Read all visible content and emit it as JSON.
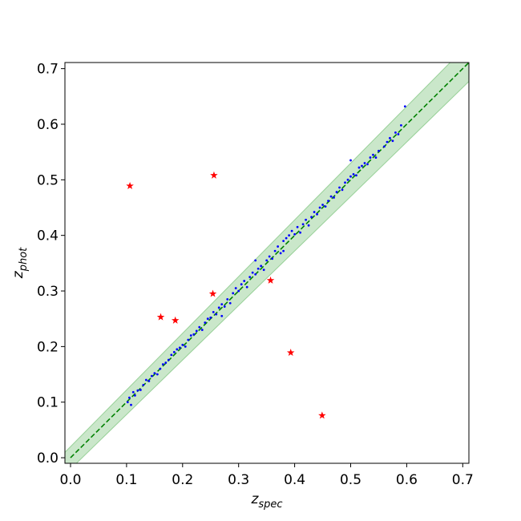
{
  "chart_data": {
    "type": "scatter",
    "xlabel": "z",
    "xlabel_sub": "spec",
    "ylabel": "z",
    "ylabel_sub": "phot",
    "xlim": [
      -0.01,
      0.711
    ],
    "ylim": [
      -0.01,
      0.711
    ],
    "xticks": [
      {
        "value": 0,
        "label": "0.0"
      },
      0.1,
      0.2,
      0.3,
      0.4,
      0.5,
      0.6,
      0.7
    ],
    "yticks": [
      {
        "value": 0,
        "label": "0.0"
      },
      0.1,
      0.2,
      0.3,
      0.4,
      0.5,
      0.6,
      0.7
    ],
    "band": {
      "color": "#2ca02c",
      "x": [
        -0.01,
        0.711
      ],
      "lower": [
        -0.0302,
        0.6768
      ],
      "upper": [
        0.0098,
        0.7452
      ]
    },
    "reference_line": {
      "color": "#008000",
      "x": [
        0,
        0.711
      ],
      "y": [
        0,
        0.711
      ]
    },
    "series": [
      {
        "marker": "dot",
        "color": "#0000ff",
        "x": [
          0.102,
          0.105,
          0.108,
          0.112,
          0.115,
          0.12,
          0.125,
          0.13,
          0.135,
          0.14,
          0.145,
          0.15,
          0.155,
          0.16,
          0.165,
          0.17,
          0.175,
          0.18,
          0.185,
          0.19,
          0.195,
          0.2,
          0.205,
          0.21,
          0.215,
          0.22,
          0.225,
          0.23,
          0.235,
          0.24,
          0.245,
          0.25,
          0.255,
          0.26,
          0.265,
          0.27,
          0.275,
          0.28,
          0.285,
          0.29,
          0.295,
          0.3,
          0.305,
          0.31,
          0.315,
          0.32,
          0.325,
          0.33,
          0.335,
          0.34,
          0.345,
          0.35,
          0.355,
          0.36,
          0.365,
          0.37,
          0.375,
          0.38,
          0.385,
          0.39,
          0.395,
          0.4,
          0.405,
          0.41,
          0.415,
          0.42,
          0.425,
          0.43,
          0.435,
          0.44,
          0.445,
          0.45,
          0.455,
          0.46,
          0.465,
          0.47,
          0.475,
          0.48,
          0.485,
          0.49,
          0.495,
          0.5,
          0.505,
          0.51,
          0.515,
          0.52,
          0.525,
          0.53,
          0.535,
          0.54,
          0.545,
          0.55,
          0.56,
          0.565,
          0.57,
          0.575,
          0.58,
          0.585,
          0.59,
          0.597,
          0.5,
          0.38,
          0.33,
          0.27
        ],
        "y": [
          0.1,
          0.108,
          0.095,
          0.118,
          0.112,
          0.121,
          0.122,
          0.131,
          0.14,
          0.138,
          0.147,
          0.152,
          0.15,
          0.16,
          0.168,
          0.171,
          0.176,
          0.185,
          0.19,
          0.195,
          0.198,
          0.203,
          0.2,
          0.212,
          0.22,
          0.222,
          0.228,
          0.235,
          0.23,
          0.243,
          0.25,
          0.252,
          0.262,
          0.258,
          0.27,
          0.276,
          0.272,
          0.285,
          0.278,
          0.296,
          0.305,
          0.3,
          0.312,
          0.318,
          0.307,
          0.325,
          0.333,
          0.33,
          0.34,
          0.345,
          0.338,
          0.355,
          0.362,
          0.358,
          0.372,
          0.38,
          0.368,
          0.39,
          0.395,
          0.4,
          0.408,
          0.402,
          0.415,
          0.405,
          0.42,
          0.428,
          0.418,
          0.433,
          0.442,
          0.438,
          0.45,
          0.455,
          0.452,
          0.462,
          0.47,
          0.468,
          0.478,
          0.486,
          0.482,
          0.495,
          0.5,
          0.506,
          0.51,
          0.508,
          0.522,
          0.525,
          0.53,
          0.528,
          0.54,
          0.545,
          0.54,
          0.552,
          0.56,
          0.568,
          0.575,
          0.57,
          0.585,
          0.582,
          0.598,
          0.632,
          0.535,
          0.372,
          0.355,
          0.255
        ]
      },
      {
        "marker": "star",
        "color": "#ff0000",
        "x": [
          0.106,
          0.256,
          0.161,
          0.187,
          0.254,
          0.357,
          0.393,
          0.449
        ],
        "y": [
          0.489,
          0.508,
          0.253,
          0.247,
          0.295,
          0.319,
          0.189,
          0.076
        ]
      }
    ]
  }
}
